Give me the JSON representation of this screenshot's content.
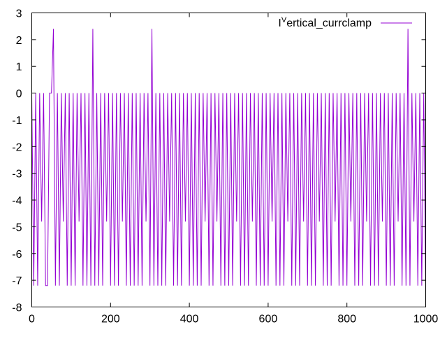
{
  "chart_data": {
    "type": "line",
    "title": "",
    "xlabel": "",
    "ylabel": "",
    "xlim": [
      0,
      1000
    ],
    "ylim": [
      -8,
      3
    ],
    "xticks": [
      0,
      200,
      400,
      600,
      800,
      1000
    ],
    "yticks": [
      3,
      2,
      1,
      0,
      -1,
      -2,
      -3,
      -4,
      -5,
      -6,
      -7,
      -8
    ],
    "grid": false,
    "legend_position": "top-right",
    "series": [
      {
        "name_parts": {
          "base": "I",
          "sup": "V",
          "rest": "ertical_currclamp"
        },
        "color": "#9400d3",
        "x_start": 0,
        "x_step": 5,
        "values": [
          0,
          -7.2,
          0,
          -7.2,
          0,
          -4.8,
          0,
          -7.2,
          -7.2,
          0,
          0,
          2.4,
          -7.2,
          0,
          -7.2,
          0,
          -4.8,
          0,
          -7.2,
          0,
          -7.2,
          0,
          -7.2,
          0,
          -4.8,
          0,
          -7.2,
          0,
          -7.2,
          0,
          -7.2,
          2.4,
          -7.2,
          0,
          -7.2,
          0,
          -7.2,
          0,
          -4.8,
          0,
          -7.2,
          0,
          -7.2,
          0,
          -7.2,
          0,
          -4.8,
          0,
          -7.2,
          0,
          -7.2,
          0,
          -7.2,
          0,
          -7.2,
          0,
          -7.2,
          0,
          -4.8,
          0,
          -7.2,
          2.4,
          -7.2,
          0,
          -7.2,
          0,
          -7.2,
          0,
          -7.2,
          0,
          -4.8,
          0,
          -7.2,
          0,
          -7.2,
          0,
          -7.2,
          0,
          -4.8,
          0,
          -7.2,
          0,
          -7.2,
          0,
          -7.2,
          0,
          -7.2,
          0,
          -4.8,
          0,
          -7.2,
          0,
          -7.2,
          0,
          -4.8,
          0,
          -7.2,
          0,
          -7.2,
          0,
          -7.2,
          0,
          -7.2,
          0,
          -4.8,
          0,
          -7.2,
          0,
          -7.2,
          0,
          -7.2,
          0,
          -4.8,
          0,
          -7.2,
          0,
          -7.2,
          0,
          -7.2,
          0,
          -7.2,
          0,
          -4.8,
          0,
          -7.2,
          0,
          -7.2,
          0,
          -7.2,
          0,
          -4.8,
          0,
          -7.2,
          0,
          -7.2,
          0,
          -7.2,
          0,
          -4.8,
          0,
          -7.2,
          0,
          -7.2,
          0,
          -7.2,
          0,
          -4.8,
          0,
          -7.2,
          0,
          -7.2,
          0,
          -7.2,
          0,
          -4.8,
          0,
          -7.2,
          0,
          -7.2,
          0,
          -7.2,
          0,
          -4.8,
          0,
          -7.2,
          0,
          -7.2,
          0,
          -7.2,
          0,
          -4.8,
          0,
          -7.2,
          0,
          -7.2,
          0,
          -7.2,
          0,
          -4.8,
          0,
          -7.2,
          0,
          -7.2,
          0,
          -7.2,
          0,
          -4.8,
          0,
          -7.2,
          0,
          -7.2,
          2.4,
          -7.2,
          0,
          -4.8,
          0,
          -7.2,
          0,
          -7.2,
          0,
          -7.2
        ]
      }
    ]
  }
}
